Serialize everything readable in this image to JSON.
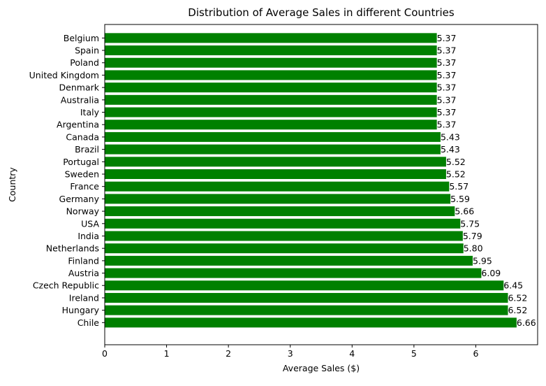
{
  "chart_data": {
    "type": "bar",
    "orientation": "horizontal",
    "title": "Distribution of Average Sales in different Countries",
    "xlabel": "Average Sales ($)",
    "ylabel": "Country",
    "xlim": [
      0,
      7.0
    ],
    "xticks": [
      0,
      1,
      2,
      3,
      4,
      5,
      6
    ],
    "grid": false,
    "bar_color": "#008000",
    "categories": [
      "Chile",
      "Hungary",
      "Ireland",
      "Czech Republic",
      "Austria",
      "Finland",
      "Netherlands",
      "India",
      "USA",
      "Norway",
      "Germany",
      "France",
      "Sweden",
      "Portugal",
      "Brazil",
      "Canada",
      "Argentina",
      "Italy",
      "Australia",
      "Denmark",
      "United Kingdom",
      "Poland",
      "Spain",
      "Belgium"
    ],
    "values": [
      6.66,
      6.52,
      6.52,
      6.45,
      6.09,
      5.95,
      5.8,
      5.79,
      5.75,
      5.66,
      5.59,
      5.57,
      5.52,
      5.52,
      5.43,
      5.43,
      5.37,
      5.37,
      5.37,
      5.37,
      5.37,
      5.37,
      5.37,
      5.37
    ],
    "value_labels": [
      "6.66",
      "6.52",
      "6.52",
      "6.45",
      "6.09",
      "5.95",
      "5.80",
      "5.79",
      "5.75",
      "5.66",
      "5.59",
      "5.57",
      "5.52",
      "5.52",
      "5.43",
      "5.43",
      "5.37",
      "5.37",
      "5.37",
      "5.37",
      "5.37",
      "5.37",
      "5.37",
      "5.37"
    ]
  }
}
